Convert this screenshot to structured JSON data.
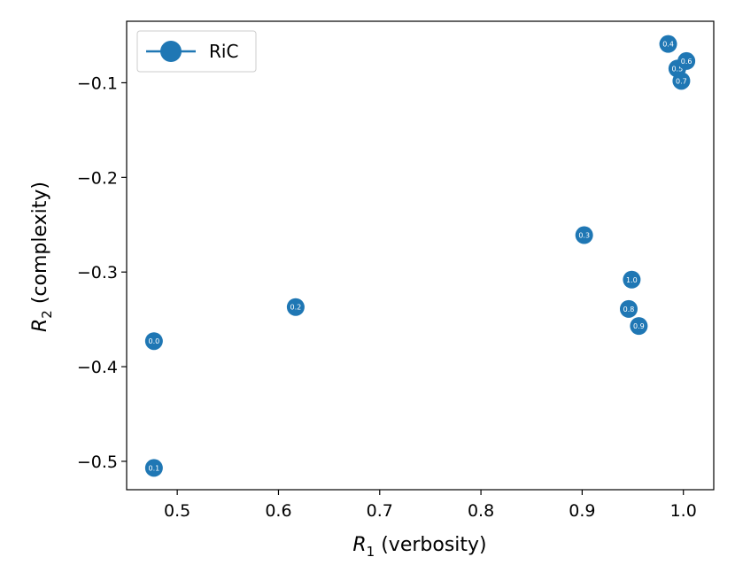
{
  "chart_data": {
    "type": "scatter",
    "xlabel_symbol": "R",
    "xlabel_sub": "1",
    "xlabel_rest": " (verbosity)",
    "ylabel_symbol": "R",
    "ylabel_sub": "2",
    "ylabel_rest": " (complexity)",
    "xlim": [
      0.45,
      1.03
    ],
    "ylim": [
      -0.53,
      -0.035
    ],
    "xticks": [
      0.5,
      0.6,
      0.7,
      0.8,
      0.9,
      1.0
    ],
    "xtick_labels": [
      "0.5",
      "0.6",
      "0.7",
      "0.8",
      "0.9",
      "1.0"
    ],
    "yticks": [
      -0.1,
      -0.2,
      -0.3,
      -0.4,
      -0.5
    ],
    "ytick_labels": [
      "−0.1",
      "−0.2",
      "−0.3",
      "−0.4",
      "−0.5"
    ],
    "grid": false,
    "legend_position": "top-left",
    "series": [
      {
        "name": "RiC",
        "color": "#1f77b4",
        "points": [
          {
            "x": 0.477,
            "y": -0.373,
            "label": "0.0"
          },
          {
            "x": 0.477,
            "y": -0.507,
            "label": "0.1"
          },
          {
            "x": 0.617,
            "y": -0.337,
            "label": "0.2"
          },
          {
            "x": 0.902,
            "y": -0.261,
            "label": "0.3"
          },
          {
            "x": 0.985,
            "y": -0.059,
            "label": "0.4"
          },
          {
            "x": 0.994,
            "y": -0.085,
            "label": "0.5"
          },
          {
            "x": 1.003,
            "y": -0.077,
            "label": "0.6"
          },
          {
            "x": 0.998,
            "y": -0.098,
            "label": "0.7"
          },
          {
            "x": 0.946,
            "y": -0.339,
            "label": "0.8"
          },
          {
            "x": 0.956,
            "y": -0.357,
            "label": "0.9"
          },
          {
            "x": 0.949,
            "y": -0.308,
            "label": "1.0"
          }
        ]
      }
    ]
  }
}
